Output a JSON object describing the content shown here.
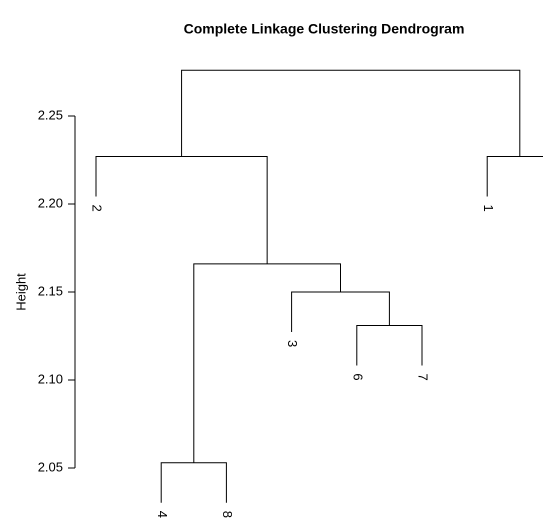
{
  "chart_data": {
    "type": "dendrogram",
    "title": "Complete Linkage Clustering Dendrogram",
    "ylabel": "Height",
    "leaves": [
      "2",
      "4",
      "8",
      "3",
      "6",
      "7",
      "1",
      null
    ],
    "merge": [
      [
        -5,
        -6
      ],
      [
        -4,
        1
      ],
      [
        -2,
        -3
      ],
      [
        3,
        2
      ],
      [
        -1,
        4
      ],
      [
        -7,
        -8
      ],
      [
        5,
        6
      ]
    ],
    "heights": [
      2.131,
      2.15,
      2.053,
      2.166,
      2.227,
      2.227,
      2.276
    ],
    "ylim": [
      2.05,
      2.25
    ],
    "yticks": [
      {
        "value": 2.05,
        "label": "2.05"
      },
      {
        "value": 2.1,
        "label": "2.10"
      },
      {
        "value": 2.15,
        "label": "2.15"
      },
      {
        "value": 2.2,
        "label": "2.20"
      },
      {
        "value": 2.25,
        "label": "2.25"
      }
    ]
  }
}
